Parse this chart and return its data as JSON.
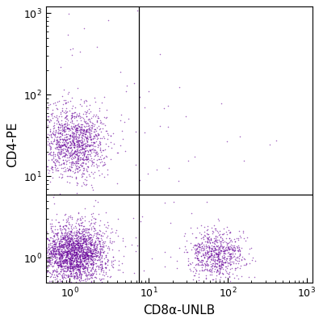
{
  "title": "",
  "xlabel": "CD8α-UNLB",
  "ylabel": "CD4-PE",
  "xlim": [
    0.5,
    1200
  ],
  "ylim": [
    0.5,
    1200
  ],
  "dot_color": "#660099",
  "dot_alpha": 0.6,
  "dot_size": 1.2,
  "gate_x": 7.5,
  "gate_y": 6.0,
  "populations": {
    "CD4_CD8_neg": {
      "n": 2200,
      "x_log_mean": 0.05,
      "x_log_std": 0.22,
      "y_log_mean": 0.05,
      "y_log_std": 0.18
    },
    "CD4_pos": {
      "n": 1200,
      "x_log_mean": 0.05,
      "x_log_std": 0.2,
      "y_log_mean": 1.42,
      "y_log_std": 0.22
    },
    "CD8_pos": {
      "n": 700,
      "x_log_mean": 1.85,
      "x_log_std": 0.18,
      "y_log_mean": 0.05,
      "y_log_std": 0.15
    },
    "sparse_upper_left": {
      "n": 80,
      "x_log_mean": 0.3,
      "x_log_std": 0.6,
      "y_log_mean": 1.5,
      "y_log_std": 0.55
    },
    "sparse_upper_right": {
      "n": 20,
      "x_log_mean": 1.5,
      "x_log_std": 0.5,
      "y_log_mean": 1.3,
      "y_log_std": 0.5
    },
    "top_few": {
      "n": 8,
      "x_log_mean": -0.1,
      "x_log_std": 0.3,
      "y_log_mean": 2.7,
      "y_log_std": 0.15
    },
    "double_neg_spread": {
      "n": 50,
      "x_log_mean": 0.4,
      "x_log_std": 0.5,
      "y_log_mean": 0.0,
      "y_log_std": 0.3
    }
  },
  "xticks": [
    1,
    10,
    100,
    1000
  ],
  "yticks": [
    1,
    10,
    100,
    1000
  ],
  "xtick_labels": [
    "10$^0$",
    "10$^1$",
    "10$^2$",
    "10$^3$"
  ],
  "ytick_labels": [
    "10$^0$",
    "10$^1$",
    "10$^2$",
    "10$^3$"
  ],
  "background_color": "#ffffff",
  "tick_label_fontsize": 9,
  "axis_label_fontsize": 11
}
